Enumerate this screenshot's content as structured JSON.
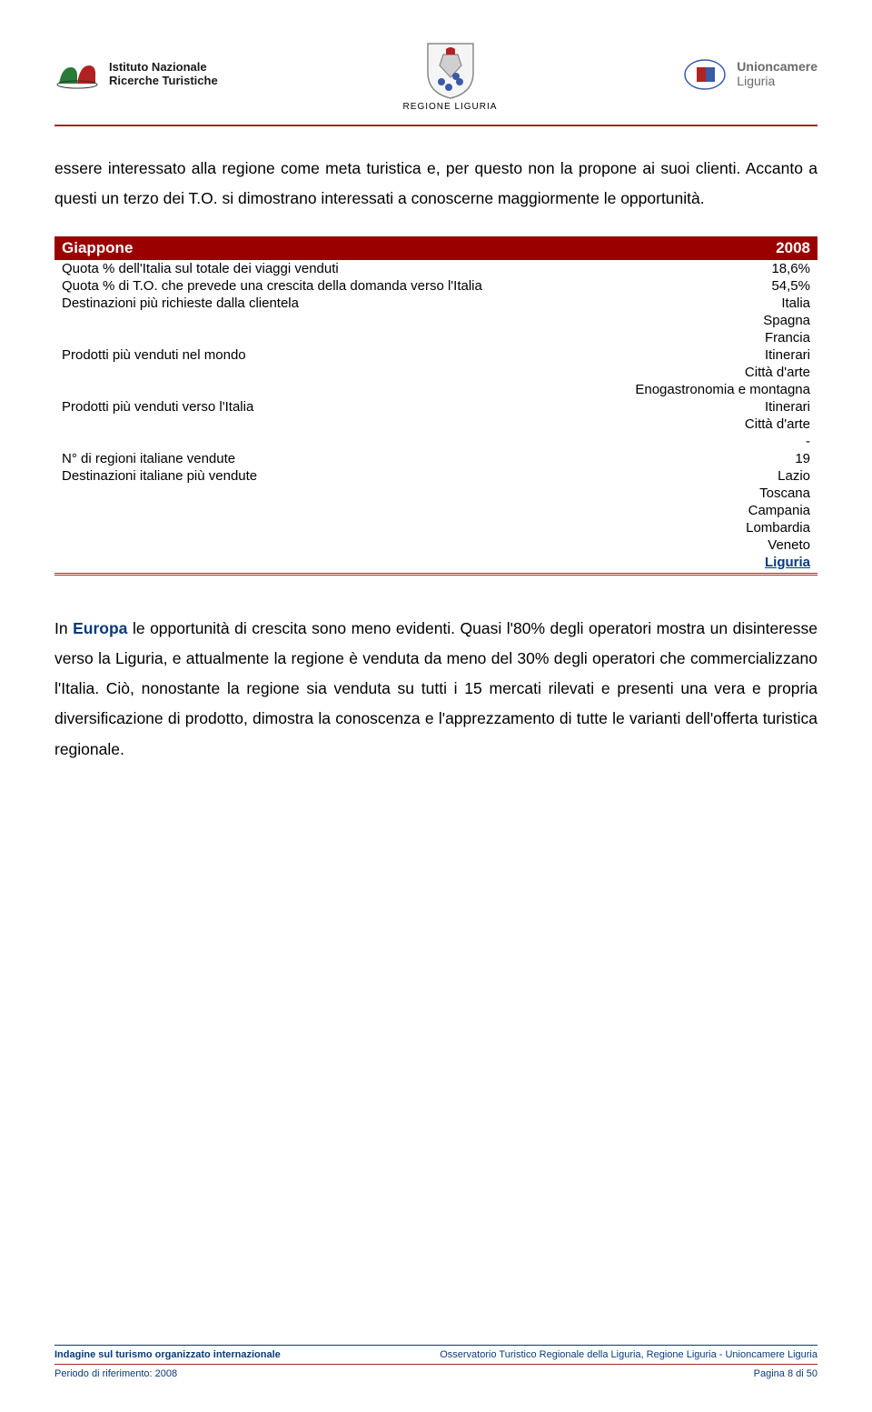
{
  "header": {
    "isnart": {
      "line1": "Istituto Nazionale",
      "line2": "Ricerche Turistiche"
    },
    "regione": {
      "label": "REGIONE LIGURIA"
    },
    "unioncamere": {
      "line1": "Unioncamere",
      "line2": "Liguria"
    }
  },
  "intro": "essere interessato alla regione come meta turistica e, per questo non la propone ai suoi clienti. Accanto a questi un terzo dei T.O. si dimostrano interessati a conoscerne maggiormente le opportunità.",
  "table": {
    "title": "Giappone",
    "year": "2008",
    "rows": [
      {
        "label": "Quota % dell'Italia sul totale dei viaggi venduti",
        "value": "18,6%"
      },
      {
        "label": "Quota % di T.O. che prevede una crescita della domanda verso l'Italia",
        "value": "54,5%"
      },
      {
        "label": "Destinazioni più richieste dalla clientela",
        "value": "Italia"
      },
      {
        "label": "",
        "value": "Spagna"
      },
      {
        "label": "",
        "value": "Francia"
      },
      {
        "label": "Prodotti più venduti nel mondo",
        "value": "Itinerari"
      },
      {
        "label": "",
        "value": "Città d'arte"
      },
      {
        "label": "",
        "value": "Enogastronomia e montagna"
      },
      {
        "label": "Prodotti più venduti verso l'Italia",
        "value": "Itinerari"
      },
      {
        "label": "",
        "value": "Città d'arte"
      },
      {
        "label": "",
        "value": "-"
      },
      {
        "label": "N° di regioni italiane vendute",
        "value": "19"
      },
      {
        "label": "Destinazioni italiane più vendute",
        "value": "Lazio"
      },
      {
        "label": "",
        "value": "Toscana"
      },
      {
        "label": "",
        "value": "Campania"
      },
      {
        "label": "",
        "value": "Lombardia"
      },
      {
        "label": "",
        "value": "Veneto"
      }
    ],
    "final": {
      "label": "",
      "value": "Liguria"
    }
  },
  "para2_pre": "In ",
  "para2_eu": "Europa",
  "para2_post": " le opportunità di crescita sono meno evidenti. Quasi l'80% degli operatori mostra un disinteresse verso la Liguria, e attualmente la regione è venduta da meno del 30% degli operatori che commercializzano l'Italia. Ciò, nonostante la regione sia venduta su tutti i 15 mercati rilevati e presenti una vera e propria diversificazione di prodotto, dimostra la conoscenza e l'apprezzamento di tutte le varianti dell'offerta turistica regionale.",
  "footer": {
    "left1": "Indagine sul turismo organizzato internazionale",
    "right1": "Osservatorio Turistico Regionale della Liguria, Regione Liguria - Unioncamere Liguria",
    "left2": "Periodo di riferimento: 2008",
    "right2": "Pagina 8 di 50"
  }
}
